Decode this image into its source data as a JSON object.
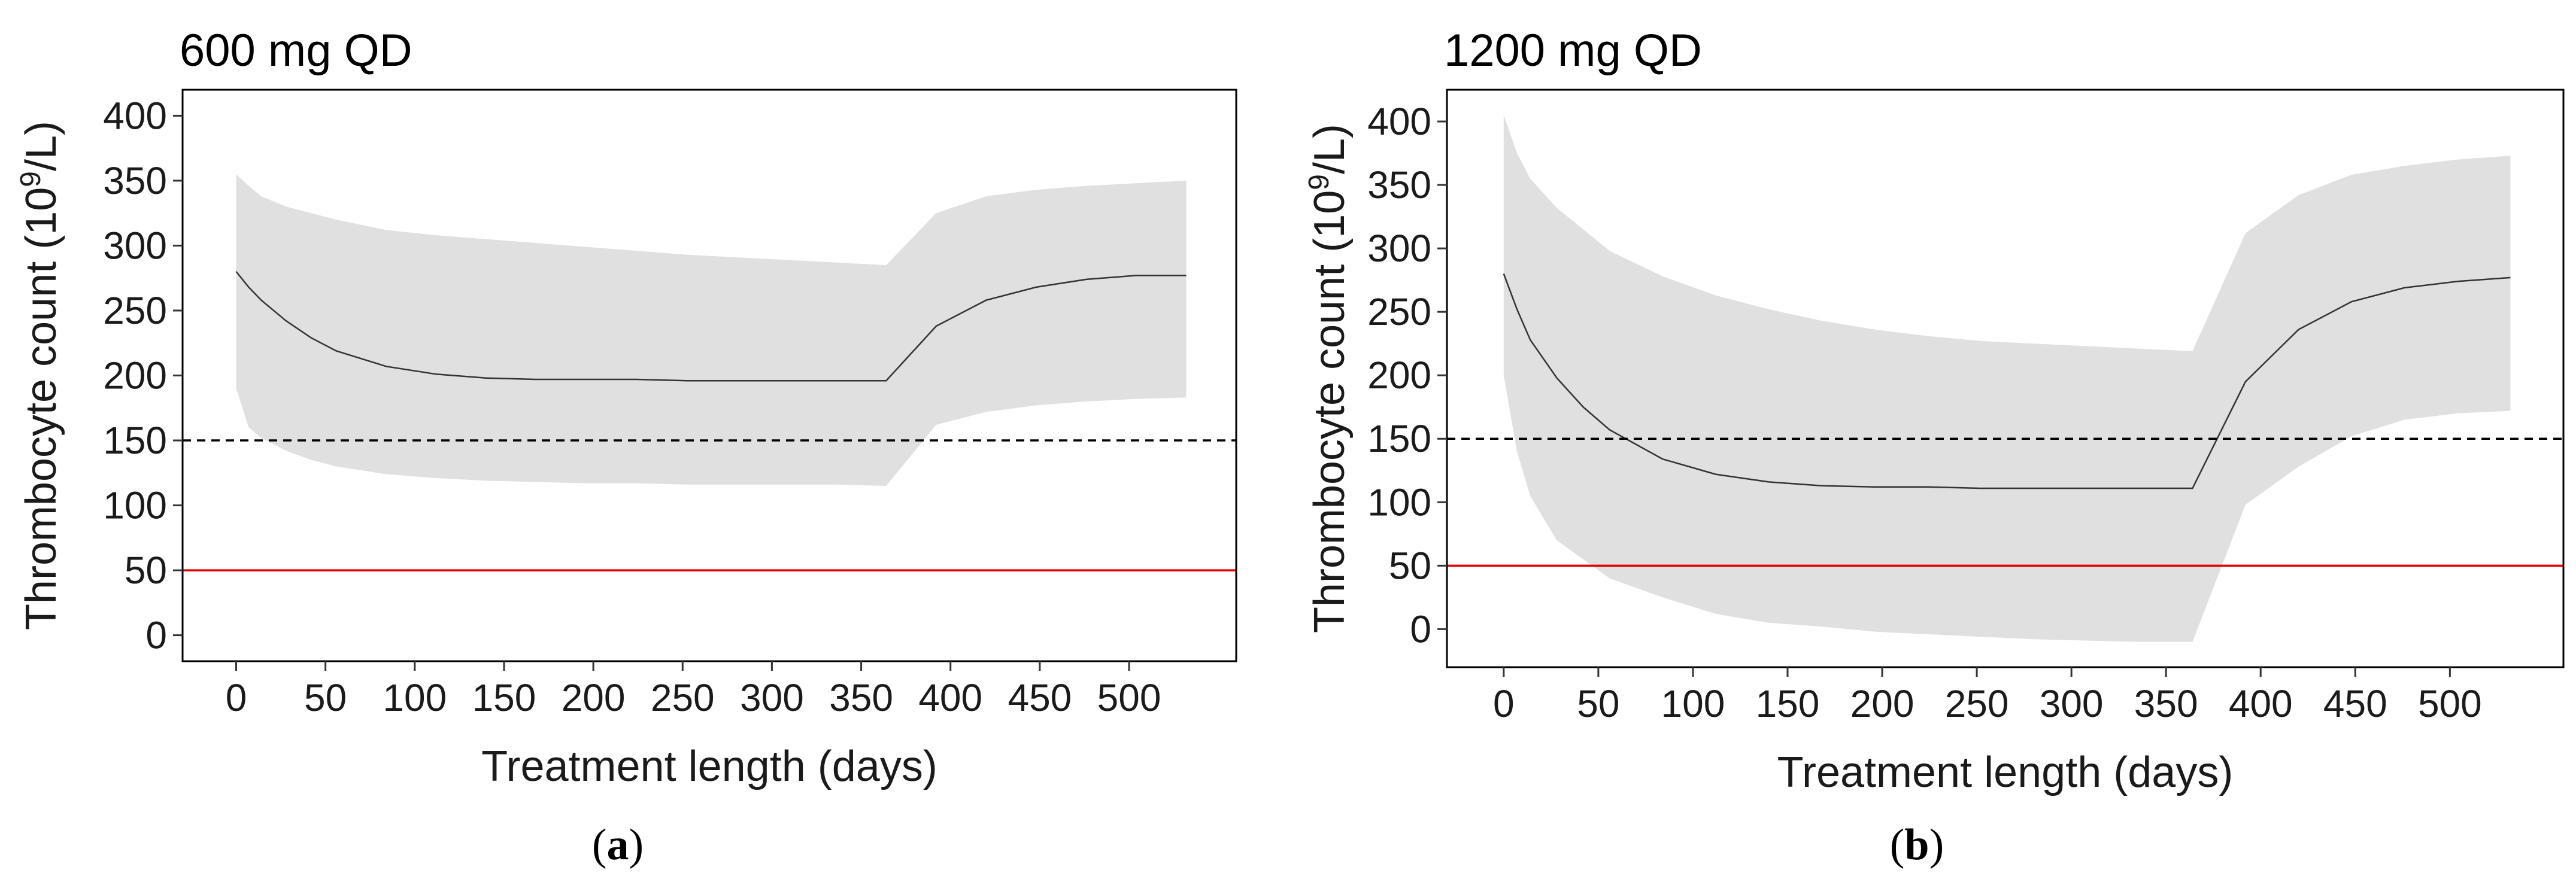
{
  "chart_data": [
    {
      "type": "line",
      "title": "600 mg QD",
      "xlabel": "Treatment length (days)",
      "ylabel_main": "Thrombocyte count (10",
      "ylabel_sup": "9",
      "ylabel_tail": "/L)",
      "caption_letter": "a",
      "xlim": [
        -30,
        560
      ],
      "ylim": [
        -20,
        420
      ],
      "xticks": [
        0,
        50,
        100,
        150,
        200,
        250,
        300,
        350,
        400,
        450,
        500
      ],
      "yticks": [
        0,
        50,
        100,
        150,
        200,
        250,
        300,
        350,
        400
      ],
      "grid": false,
      "reference_lines": [
        {
          "y": 150,
          "style": "dashed",
          "color": "#000000"
        },
        {
          "y": 50,
          "style": "solid",
          "color": "#e00000"
        }
      ],
      "band_color": "#e0e0e0",
      "line_color": "#333333",
      "series": [
        {
          "x": [
            0,
            7,
            14,
            28,
            42,
            56,
            84,
            112,
            140,
            168,
            196,
            224,
            252,
            280,
            308,
            336,
            364,
            392,
            420,
            448,
            476,
            504,
            532
          ],
          "y": [
            280,
            268,
            258,
            242,
            229,
            219,
            207,
            201,
            198,
            197,
            197,
            197,
            196,
            196,
            196,
            196,
            196,
            238,
            258,
            268,
            274,
            277,
            277
          ],
          "lower": [
            190,
            160,
            152,
            142,
            135,
            130,
            124,
            121,
            119,
            118,
            117,
            117,
            116,
            116,
            116,
            116,
            115,
            162,
            172,
            177,
            180,
            182,
            183
          ],
          "upper": [
            355,
            346,
            338,
            330,
            325,
            320,
            312,
            308,
            305,
            302,
            299,
            296,
            293,
            291,
            289,
            287,
            285,
            325,
            338,
            343,
            346,
            348,
            350
          ]
        }
      ]
    },
    {
      "type": "line",
      "title": "1200 mg QD",
      "xlabel": "Treatment length (days)",
      "ylabel_main": "Thrombocyte count (10",
      "ylabel_sup": "9",
      "ylabel_tail": "/L)",
      "caption_letter": "b",
      "xlim": [
        -30,
        560
      ],
      "ylim": [
        -30,
        425
      ],
      "xticks": [
        0,
        50,
        100,
        150,
        200,
        250,
        300,
        350,
        400,
        450,
        500
      ],
      "yticks": [
        0,
        50,
        100,
        150,
        200,
        250,
        300,
        350,
        400
      ],
      "grid": false,
      "reference_lines": [
        {
          "y": 150,
          "style": "dashed",
          "color": "#000000"
        },
        {
          "y": 50,
          "style": "solid",
          "color": "#e00000"
        }
      ],
      "band_color": "#e0e0e0",
      "line_color": "#333333",
      "series": [
        {
          "x": [
            0,
            7,
            14,
            28,
            42,
            56,
            84,
            112,
            140,
            168,
            196,
            224,
            252,
            280,
            308,
            336,
            364,
            392,
            420,
            448,
            476,
            504,
            532
          ],
          "y": [
            280,
            252,
            228,
            198,
            175,
            157,
            134,
            122,
            116,
            113,
            112,
            112,
            111,
            111,
            111,
            111,
            111,
            195,
            236,
            258,
            269,
            274,
            277
          ],
          "lower": [
            200,
            140,
            105,
            70,
            55,
            40,
            25,
            12,
            5,
            2,
            -2,
            -4,
            -6,
            -8,
            -9,
            -10,
            -10,
            98,
            128,
            152,
            165,
            170,
            172
          ],
          "upper": [
            405,
            375,
            355,
            332,
            315,
            298,
            278,
            263,
            252,
            243,
            236,
            231,
            227,
            225,
            223,
            221,
            219,
            312,
            342,
            358,
            365,
            370,
            373
          ]
        }
      ]
    }
  ]
}
